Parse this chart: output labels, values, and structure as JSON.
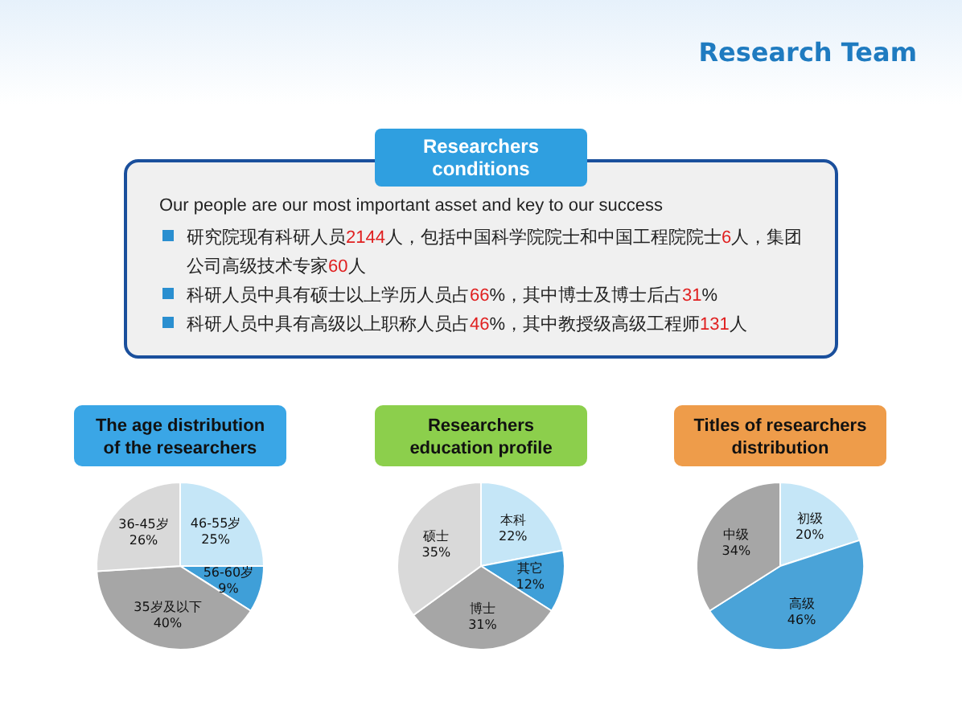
{
  "chart_data": [
    {
      "type": "other",
      "title": "Research Team"
    },
    {
      "type": "other",
      "title": "Researchers conditions",
      "annotations": [
        "Our people are our most important asset and key to our success",
        "研究院现有科研人员2144人，包括中国科学院院士和中国工程院院士6人，集团公司高级技术专家60人",
        "科研人员中具有硕士以上学历人员占66%，其中博士及博士后占31%",
        "科研人员中具有高级以上职称人员占46%，其中教授级高级工程师131人"
      ]
    },
    {
      "type": "pie",
      "title": "The age distribution of the researchers",
      "categories": [
        "46-55岁",
        "56-60岁",
        "35岁及以下",
        "36-45岁"
      ],
      "values": [
        25,
        9,
        40,
        26
      ],
      "value_labels": [
        "25%",
        "9%",
        "40%",
        "26%"
      ],
      "colors": [
        "#c5e6f7",
        "#3f9fd8",
        "#a6a6a6",
        "#d9d9d9"
      ]
    },
    {
      "type": "pie",
      "title": "Researchers education profile",
      "categories": [
        "本科",
        "其它",
        "博士",
        "硕士"
      ],
      "values": [
        22,
        12,
        31,
        35
      ],
      "value_labels": [
        "22%",
        "12%",
        "31%",
        "35%"
      ],
      "colors": [
        "#c5e6f7",
        "#3f9fd8",
        "#a6a6a6",
        "#d9d9d9"
      ]
    },
    {
      "type": "pie",
      "title": "Titles of researchers distribution",
      "categories": [
        "初级",
        "高级",
        "中级"
      ],
      "values": [
        20,
        46,
        34
      ],
      "value_labels": [
        "20%",
        "46%",
        "34%"
      ],
      "colors": [
        "#c5e6f7",
        "#4aa3d8",
        "#a6a6a6"
      ]
    }
  ]
}
